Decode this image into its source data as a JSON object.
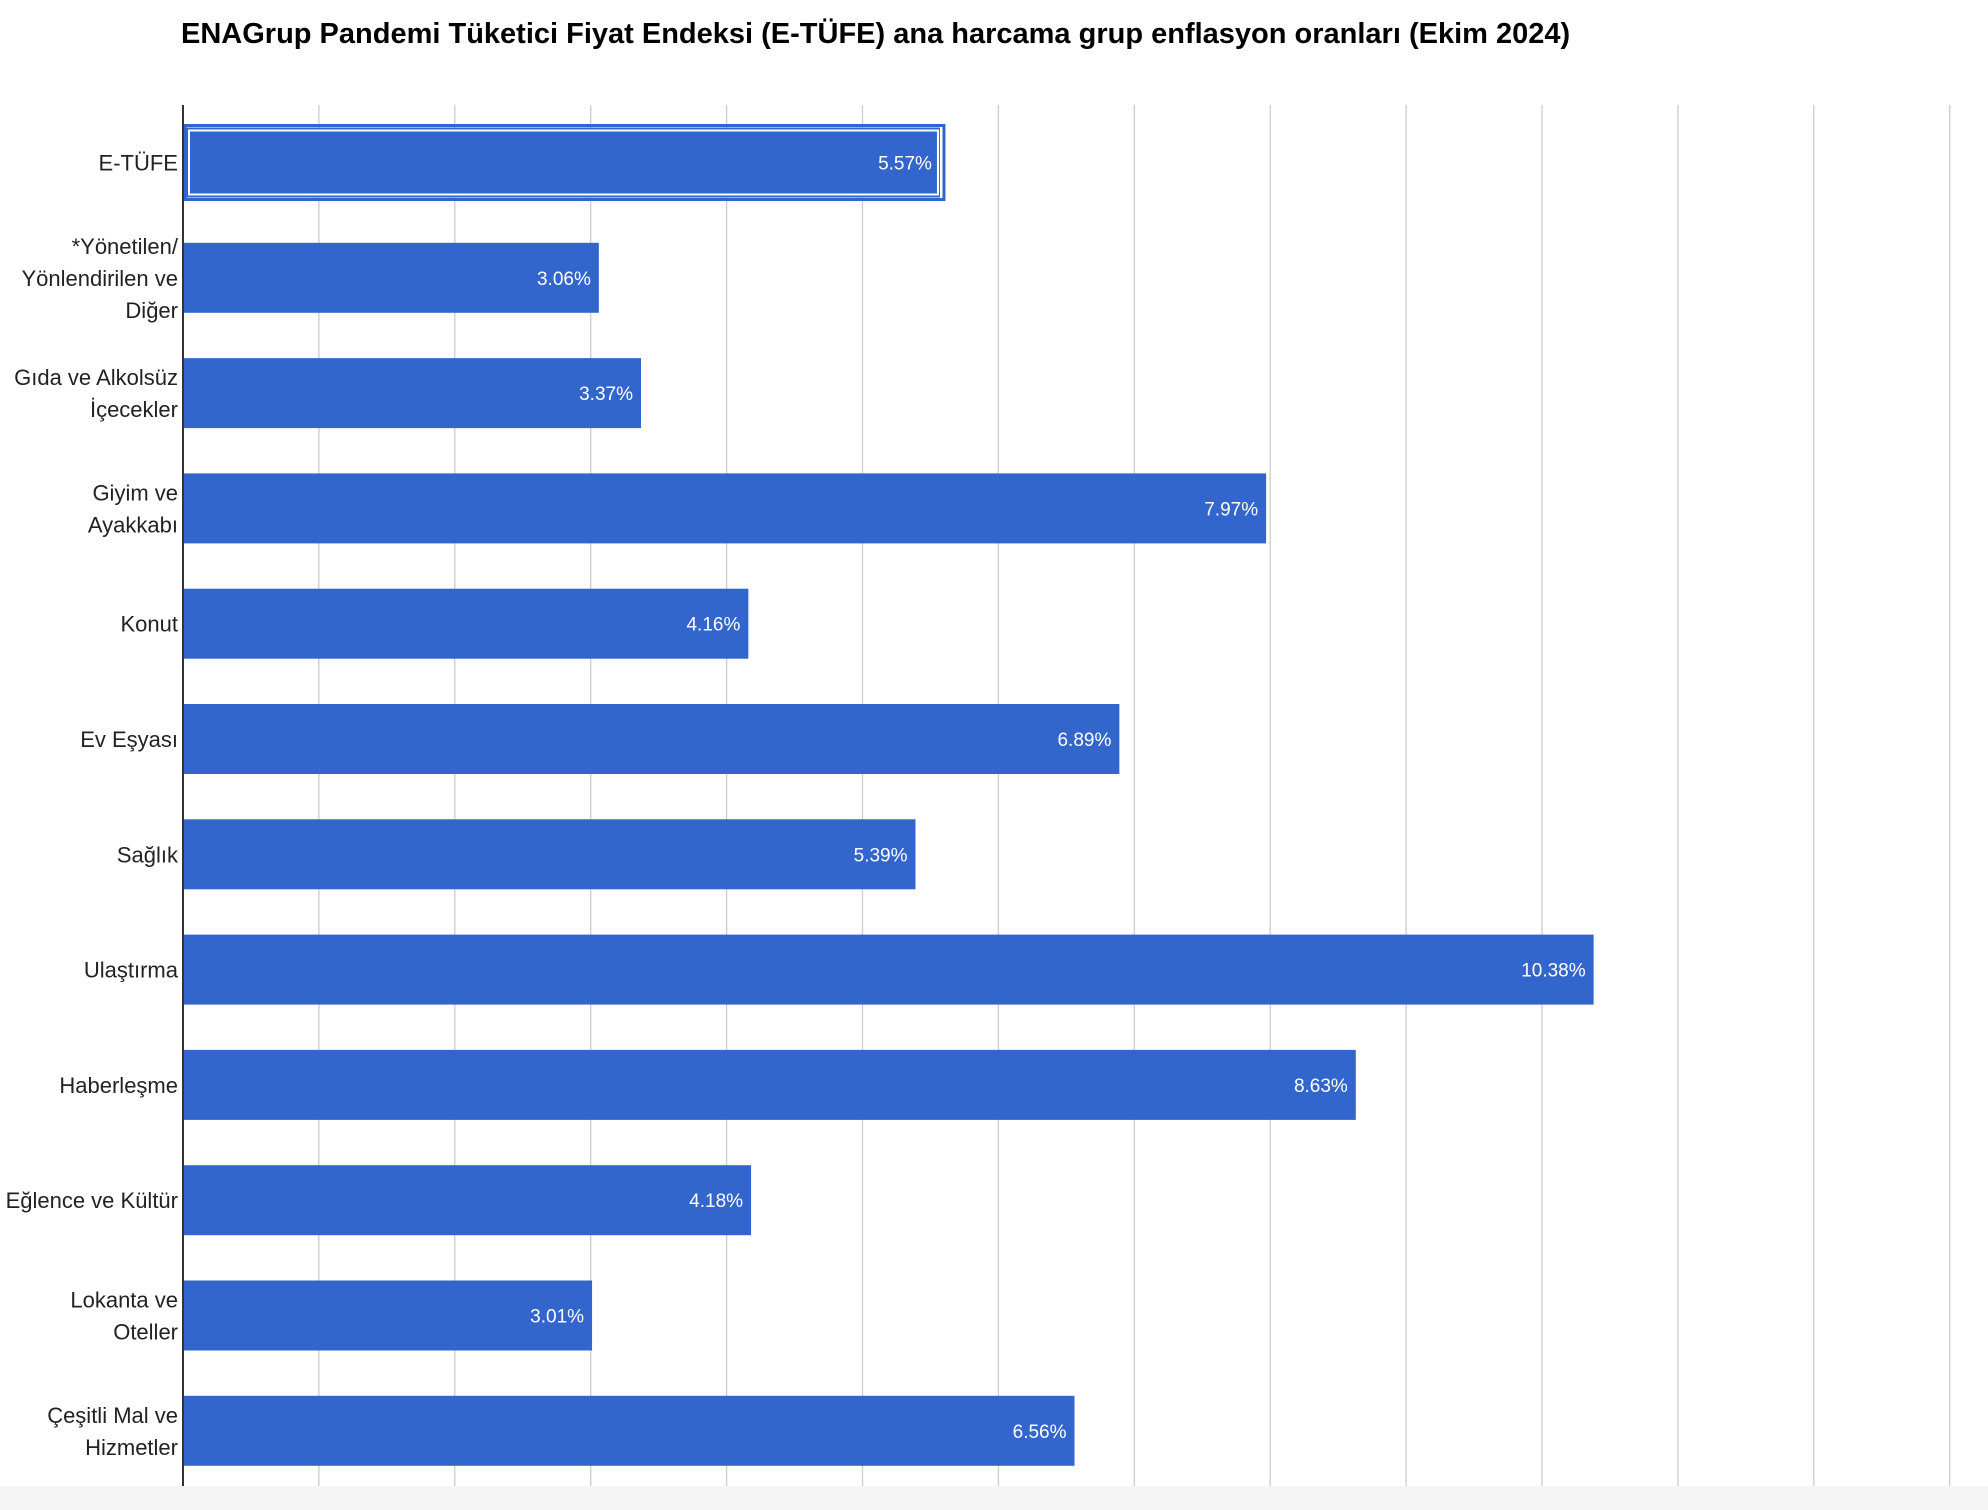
{
  "chart_data": {
    "type": "bar",
    "orientation": "horizontal",
    "title": "ENAGrup Pandemi Tüketici Fiyat Endeksi (E-TÜFE) ana harcama grup enflasyon oranları (Ekim 2024)",
    "categories": [
      "E-TÜFE",
      "*Yönetilen/ Yönlendirilen ve Diğer",
      "Gıda ve Alkolsüz İçecekler",
      "Giyim ve Ayakkabı",
      "Konut",
      "Ev Eşyası",
      "Sağlık",
      "Ulaştırma",
      "Haberleşme",
      "Eğlence ve Kültür",
      "Lokanta ve Oteller",
      "Çeşitli Mal ve Hizmetler"
    ],
    "category_lines": [
      [
        "E-TÜFE"
      ],
      [
        "*Yönetilen/",
        "Yönlendirilen ve",
        "Diğer"
      ],
      [
        "Gıda ve Alkolsüz",
        "İçecekler"
      ],
      [
        "Giyim ve",
        "Ayakkabı"
      ],
      [
        "Konut"
      ],
      [
        "Ev Eşyası"
      ],
      [
        "Sağlık"
      ],
      [
        "Ulaştırma"
      ],
      [
        "Haberleşme"
      ],
      [
        "Eğlence ve Kültür"
      ],
      [
        "Lokanta ve",
        "Oteller"
      ],
      [
        "Çeşitli Mal ve",
        "Hizmetler"
      ]
    ],
    "values": [
      5.57,
      3.06,
      3.37,
      7.97,
      4.16,
      6.89,
      5.39,
      10.38,
      8.63,
      4.18,
      3.01,
      6.56
    ],
    "data_labels": [
      "5.57%",
      "3.06%",
      "3.37%",
      "7.97%",
      "4.16%",
      "6.89%",
      "5.39%",
      "10.38%",
      "8.63%",
      "4.18%",
      "3.01%",
      "6.56%"
    ],
    "highlighted_category": "E-TÜFE",
    "xlim": [
      0,
      13
    ],
    "grid_step": 1,
    "grid": true,
    "x_tick_labels_visible": false,
    "legend": "none",
    "colors": {
      "bar": "#3366cc",
      "highlight_border": "#3366cc",
      "highlight_inner_border": "#ffffff",
      "grid": "#cccccc",
      "axis": "#333333",
      "background": "#ffffff"
    }
  }
}
